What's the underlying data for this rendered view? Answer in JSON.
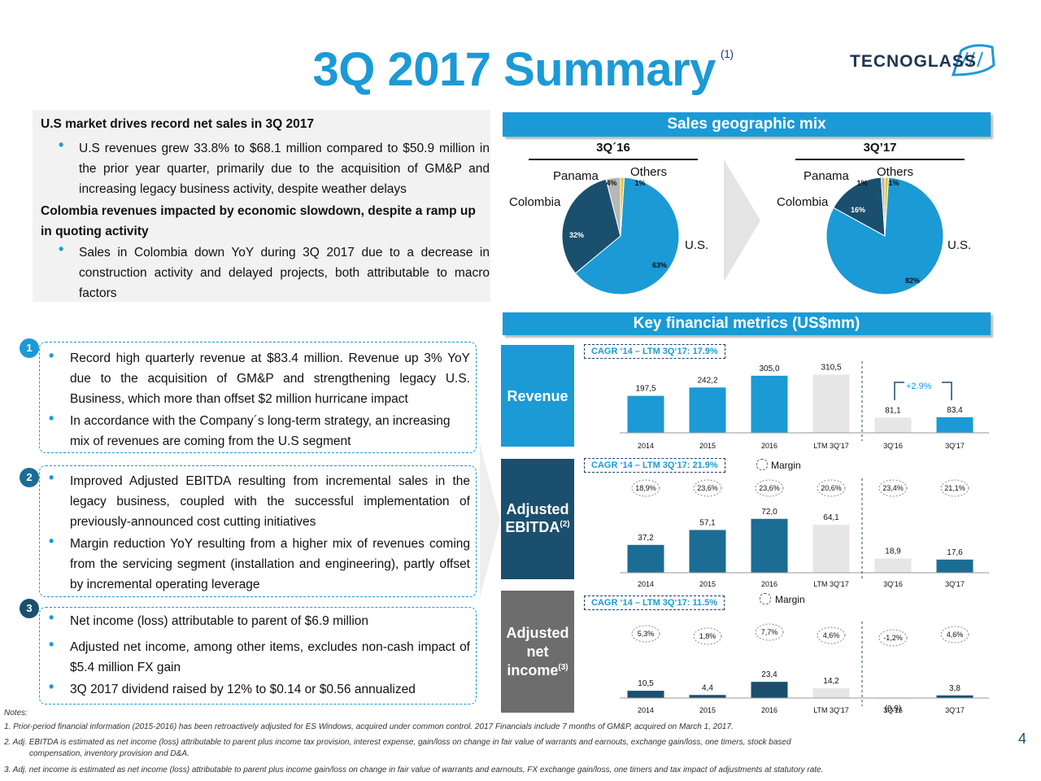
{
  "title": "3Q 2017 Summary",
  "title_sup": "(1)",
  "logo_text": "TECNOGLASS",
  "left_top": {
    "heading1": "U.S market drives record net sales in 3Q 2017",
    "bullet1": "U.S revenues grew 33.8% to $68.1 million compared to $50.9 million in the prior year quarter, primarily due to the acquisition of GM&P and increasing legacy business activity, despite weather delays",
    "heading2": "Colombia revenues impacted by economic slowdown, despite a ramp up in quoting activity",
    "bullet2": "Sales in Colombia down YoY during 3Q 2017 due to a decrease in construction activity and delayed projects, both attributable to macro factors"
  },
  "sections": [
    {
      "num": "1",
      "bullets": [
        "Record high quarterly revenue at $83.4 million. Revenue up 3% YoY due to the acquisition of GM&P and strengthening legacy U.S. Business, which more than offset $2 million hurricane impact",
        "In accordance with the Company´s long-term strategy, an increasing mix of revenues are coming from the U.S segment"
      ]
    },
    {
      "num": "2",
      "bullets": [
        "Improved Adjusted EBITDA resulting from incremental sales in the legacy business, coupled with the successful implementation of previously-announced cost cutting initiatives",
        "Margin reduction YoY resulting from a higher mix of revenues coming from the servicing segment (installation and engineering), partly offset by incremental operating leverage"
      ]
    },
    {
      "num": "3",
      "bullets": [
        "Net income (loss) attributable to parent of $6.9 million",
        "Adjusted net income, among other items, excludes non-cash impact of $5.4 million FX gain",
        "3Q 2017 dividend raised by 12% to $0.14 or $0.56 annualized"
      ]
    }
  ],
  "geo": {
    "header": "Sales geographic mix",
    "left_title": "3Q´16",
    "right_title": "3Q’17",
    "labels": {
      "panama": "Panama",
      "others": "Others",
      "colombia": "Colombia",
      "us": "U.S."
    },
    "colors": {
      "us": "#1b9ad6",
      "colombia": "#1b4f6e",
      "panama": "#b7b7b7",
      "others": "#f0c419"
    }
  },
  "metrics_header": "Key financial metrics (US$mm)",
  "revenue": {
    "label": "Revenue",
    "cagr": "CAGR ‘14 – LTM 3Q‘17: 17.9%",
    "growth": "+2.9%"
  },
  "ebitda": {
    "label": "Adjusted",
    "label2": "EBITDA",
    "sup": "(2)",
    "cagr": "CAGR ‘14 – LTM 3Q‘17: 21.9%",
    "margin_label": "Margin"
  },
  "netincome": {
    "label": "Adjusted",
    "label2": "net",
    "label3": "income",
    "sup": "(3)",
    "cagr": "CAGR ‘14 – LTM 3Q‘17: 11.5%",
    "margin_label": "Margin"
  },
  "chart_data": [
    {
      "type": "pie",
      "title": "3Q´16",
      "categories": [
        "U.S.",
        "Colombia",
        "Panama",
        "Others"
      ],
      "values": [
        63,
        32,
        4,
        1
      ],
      "value_labels": [
        "63%",
        "32%",
        "4%",
        "1%"
      ]
    },
    {
      "type": "pie",
      "title": "3Q’17",
      "categories": [
        "U.S.",
        "Colombia",
        "Panama",
        "Others"
      ],
      "values": [
        82,
        16,
        1,
        1
      ],
      "value_labels": [
        "82%",
        "16%",
        "1%",
        "1%"
      ]
    },
    {
      "type": "bar",
      "title": "Revenue",
      "categories": [
        "2014",
        "2015",
        "2016",
        "LTM 3Q'17",
        "3Q'16",
        "3Q'17"
      ],
      "values": [
        197.5,
        242.2,
        305.0,
        310.5,
        81.1,
        83.4
      ],
      "value_labels": [
        "197,5",
        "242,2",
        "305,0",
        "310,5",
        "81,1",
        "83,4"
      ]
    },
    {
      "type": "bar",
      "title": "Adjusted EBITDA",
      "categories": [
        "2014",
        "2015",
        "2016",
        "LTM 3Q'17",
        "3Q'16",
        "3Q'17"
      ],
      "values": [
        37.2,
        57.1,
        72.0,
        64.1,
        18.9,
        17.6
      ],
      "value_labels": [
        "37,2",
        "57,1",
        "72,0",
        "64,1",
        "18,9",
        "17,6"
      ],
      "margins": [
        "18,9%",
        "23,6%",
        "23,6%",
        "20,6%",
        "23,4%",
        "21,1%"
      ]
    },
    {
      "type": "bar",
      "title": "Adjusted net income",
      "categories": [
        "2014",
        "2015",
        "2016",
        "LTM 3Q'17",
        "3Q'16",
        "3Q'17"
      ],
      "values": [
        10.5,
        4.4,
        23.4,
        14.2,
        -0.9,
        3.8
      ],
      "value_labels": [
        "10,5",
        "4,4",
        "23,4",
        "14,2",
        "(0,9)",
        "3,8"
      ],
      "margins": [
        "5,3%",
        "1,8%",
        "7,7%",
        "4,6%",
        "-1,2%",
        "4,6%"
      ]
    }
  ],
  "notes_label": "Notes:",
  "notes": [
    "1.    Prior-period financial information (2015-2016) has been retroactively adjusted for ES Windows, acquired under common control. 2017 Financials include 7 months of GM&P, acquired on March 1, 2017.",
    "2.    Adj. EBITDA is estimated as net income (loss) attributable to parent plus income tax provision, interest expense, gain/loss on change in fair value of warrants and earnouts, exchange gain/loss, one timers, stock based",
    "compensation, inventory provision and D&A.",
    "3.    Adj. net income is estimated as net income (loss) attributable to parent plus income gain/loss on change in fair value of warrants and earnouts, FX exchange gain/loss, one timers and tax impact of adjustments at statutory rate."
  ],
  "page_number": "4"
}
